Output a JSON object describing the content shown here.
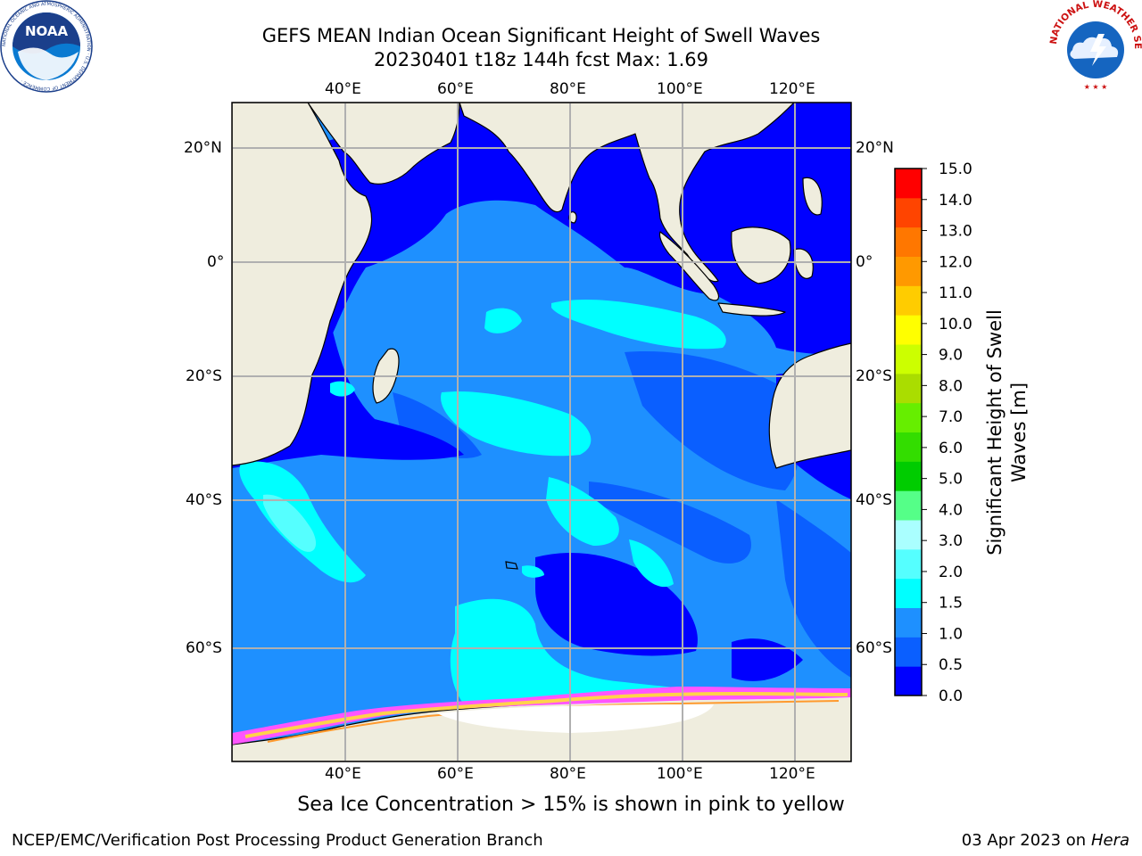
{
  "header": {
    "title_line1": "GEFS MEAN Indian Ocean Significant Height of Swell Waves",
    "title_line2": "20230401 t18z 144h fcst   Max: 1.69"
  },
  "map": {
    "lon_labels": [
      "40°E",
      "60°E",
      "80°E",
      "100°E",
      "120°E"
    ],
    "lat_labels": [
      "20°N",
      "0°",
      "20°S",
      "40°S",
      "60°S"
    ],
    "colors": {
      "land": "#efedde",
      "coast": "#000000",
      "grid": "#b0b0b0",
      "ice_pink": "#ff55ff",
      "ice_yellow": "#ffd24a",
      "ice_orange": "#ff9a2e",
      "ice_white": "#ffffff"
    }
  },
  "colorbar": {
    "label_line1": "Significant Height of Swell",
    "label_line2": "Waves [m]",
    "tick_labels": [
      "0.0",
      "0.5",
      "1.0",
      "1.5",
      "2.0",
      "3.0",
      "4.0",
      "5.0",
      "6.0",
      "7.0",
      "8.0",
      "9.0",
      "10.0",
      "11.0",
      "12.0",
      "13.0",
      "14.0",
      "15.0"
    ],
    "colors": [
      "#0000ff",
      "#0a5fff",
      "#1e90ff",
      "#00ffff",
      "#55ffff",
      "#aaffff",
      "#55ff88",
      "#00cc00",
      "#33dd00",
      "#66ee00",
      "#aadd00",
      "#ccff00",
      "#ffff00",
      "#ffcc00",
      "#ff9900",
      "#ff7700",
      "#ff4400",
      "#ff0000"
    ]
  },
  "sea_ice_note": "Sea Ice Concentration > 15% is shown in pink to yellow",
  "footer": {
    "left": "NCEP/EMC/Verification Post Processing Product Generation Branch",
    "date": "03 Apr 2023 on ",
    "machine": "Hera"
  },
  "logos": {
    "noaa_text": "NOAA",
    "noaa_ring": "NATIONAL OCEANIC AND ATMOSPHERIC ADMINISTRATION · U.S. DEPARTMENT OF COMMERCE ·",
    "nws_ring": "NATIONAL WEATHER SERVICE"
  }
}
